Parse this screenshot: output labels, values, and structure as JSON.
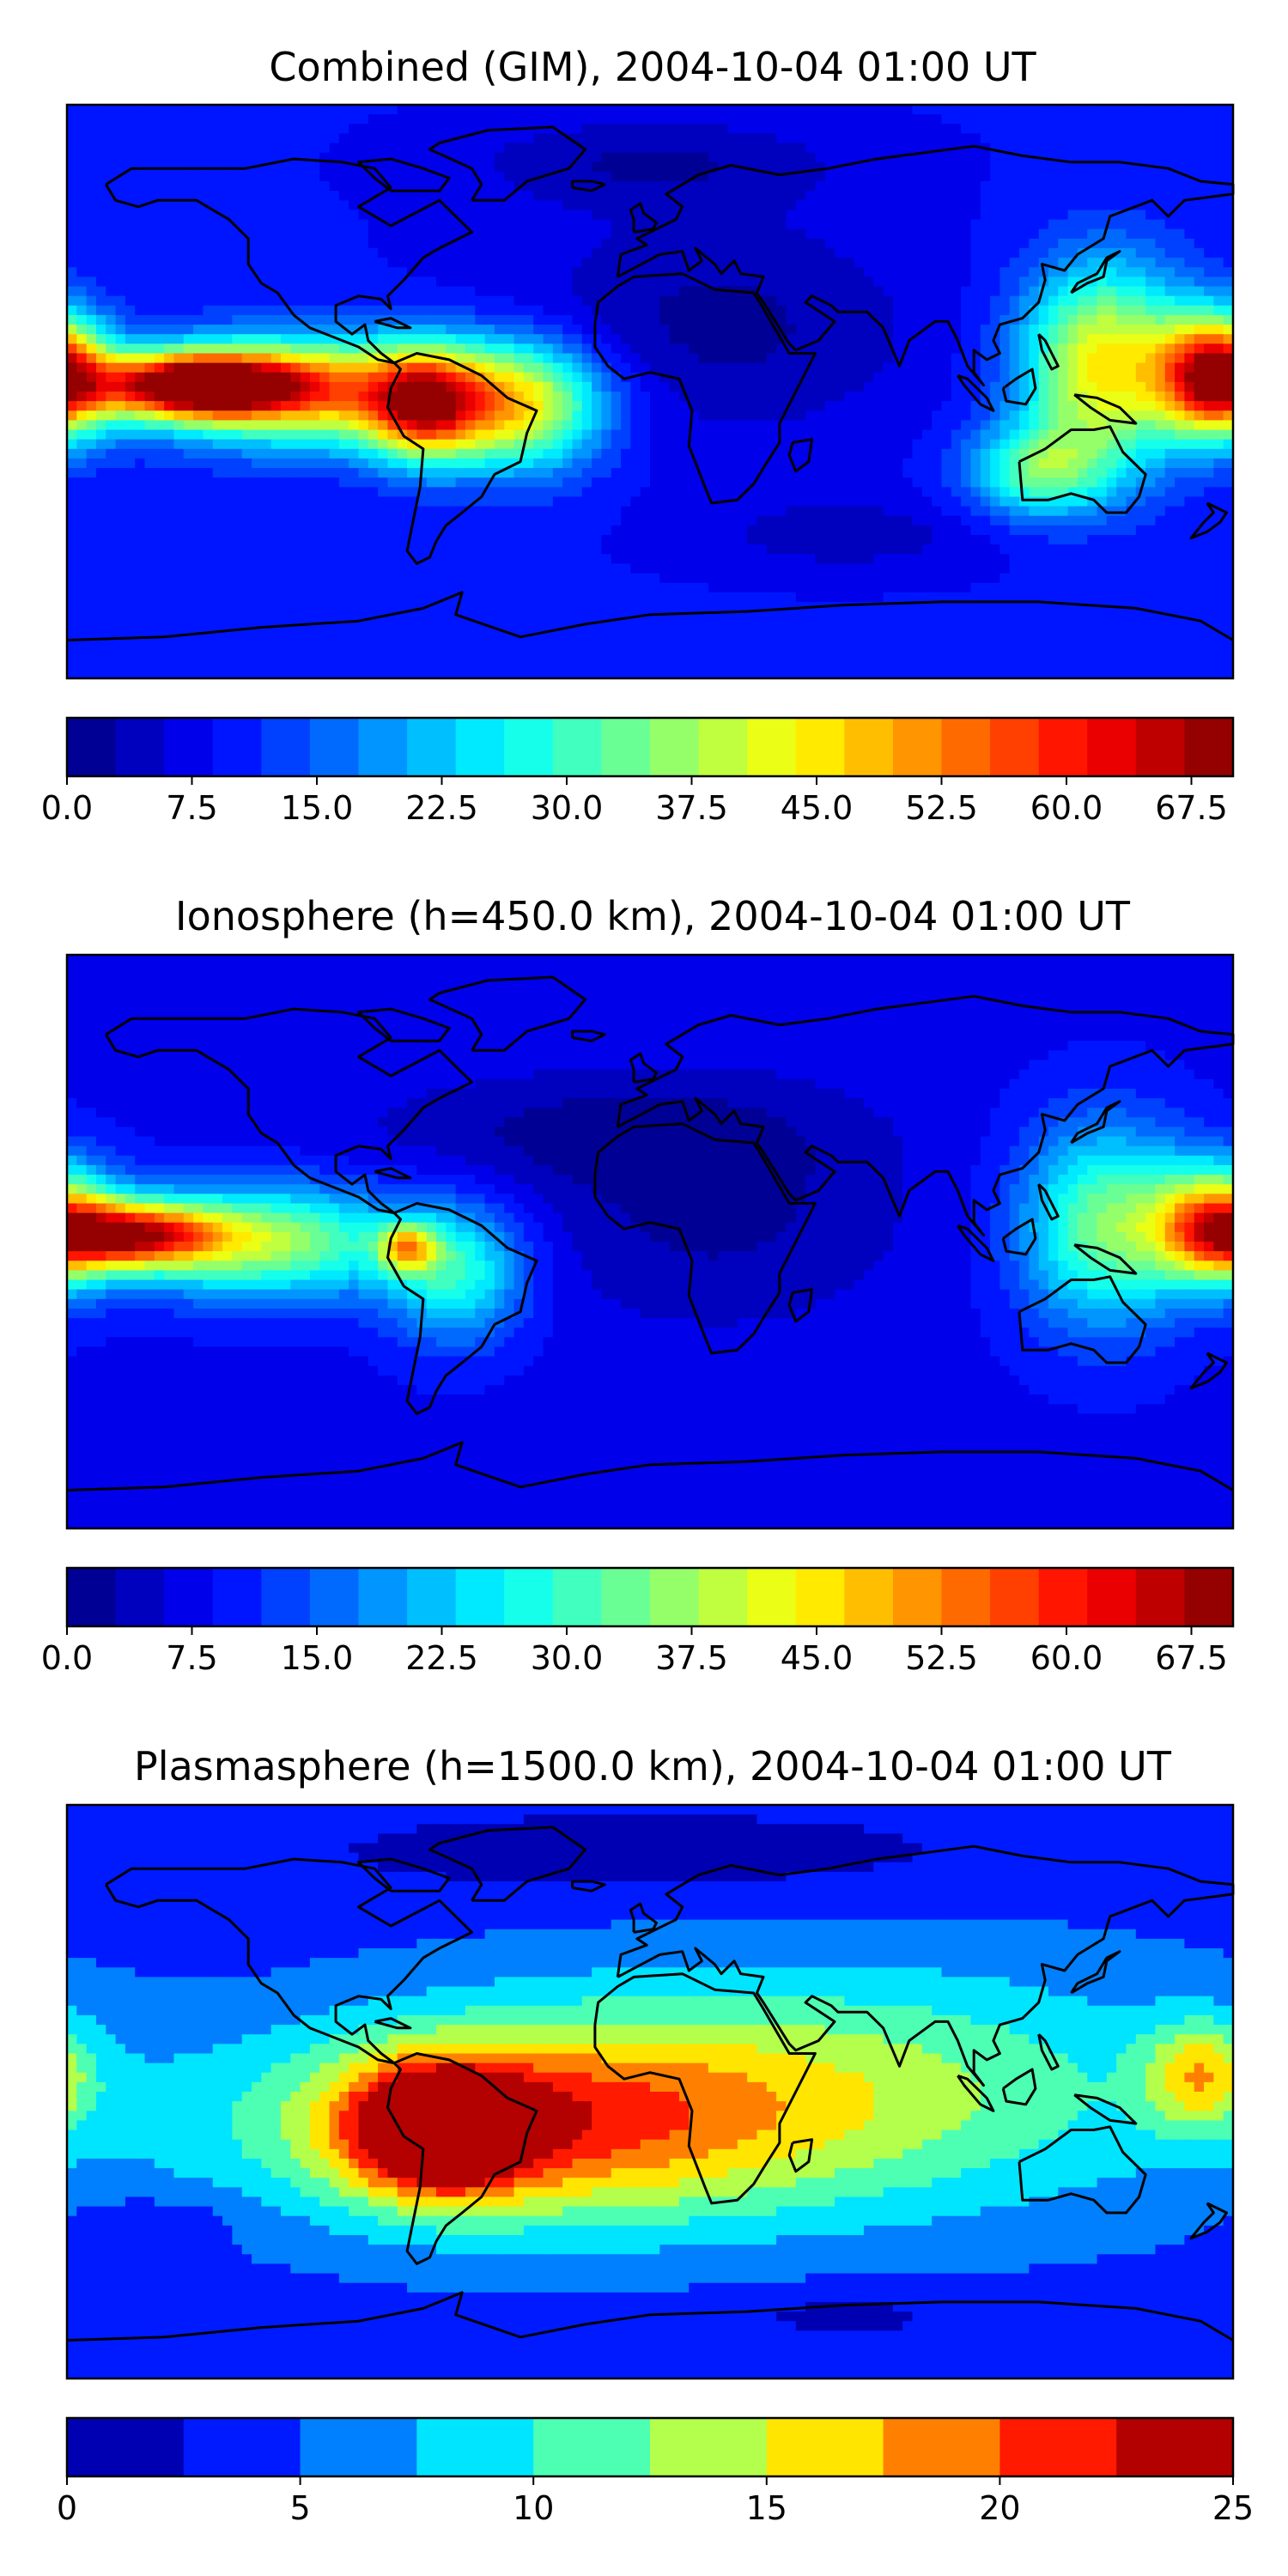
{
  "colors": {
    "jet_steps": [
      "#00008f",
      "#0000c0",
      "#0000ee",
      "#0020ff",
      "#0048ff",
      "#0070ff",
      "#0098ff",
      "#00c0ff",
      "#10e8f0",
      "#38ffc8",
      "#5cffa2",
      "#80ff80",
      "#a4ff5c",
      "#c8ff38",
      "#ecff14",
      "#ffe800",
      "#ffc000",
      "#ff9800",
      "#ff7000",
      "#ff4800",
      "#ff2000",
      "#ee0000",
      "#c00000",
      "#8f0000"
    ],
    "plasma_steps": [
      "#0000b0",
      "#0018ff",
      "#0090ff",
      "#00e0f0",
      "#50ffa8",
      "#a8ff50",
      "#f8f000",
      "#ffa000",
      "#ff4000",
      "#b00000"
    ],
    "coast": "#000000"
  },
  "chart_data": [
    {
      "type": "heatmap",
      "title": "Combined (GIM), 2004-10-04 01:00 UT",
      "colorbar": {
        "ticks": [
          "0.0",
          "7.5",
          "15.0",
          "22.5",
          "30.0",
          "37.5",
          "45.0",
          "52.5",
          "60.0",
          "67.5"
        ],
        "range": [
          0,
          70
        ],
        "levels": 24
      },
      "background_level": 9,
      "blobs": [
        {
          "lon": -140,
          "lat": 2,
          "peak": 60,
          "sx": 22,
          "sy": 7
        },
        {
          "lon": -100,
          "lat": 0,
          "peak": 38,
          "sx": 38,
          "sy": 12
        },
        {
          "lon": -70,
          "lat": -5,
          "peak": 34,
          "sx": 12,
          "sy": 12
        },
        {
          "lon": -40,
          "lat": -5,
          "peak": 30,
          "sx": 18,
          "sy": 14
        },
        {
          "lon": 175,
          "lat": 5,
          "peak": 55,
          "sx": 12,
          "sy": 13
        },
        {
          "lon": 140,
          "lat": 8,
          "peak": 36,
          "sx": 18,
          "sy": 22
        },
        {
          "lon": 120,
          "lat": -25,
          "peak": 22,
          "sx": 15,
          "sy": 10
        }
      ],
      "lows": [
        {
          "lon": 20,
          "lat": 20,
          "depth": 7,
          "sx": 45,
          "sy": 25
        },
        {
          "lon": 0,
          "lat": 72,
          "depth": 6,
          "sx": 40,
          "sy": 10
        },
        {
          "lon": 60,
          "lat": -45,
          "depth": 5,
          "sx": 30,
          "sy": 8
        }
      ]
    },
    {
      "type": "heatmap",
      "title": "Ionosphere  (h=450.0 km), 2004-10-04 01:00 UT",
      "colorbar": {
        "ticks": [
          "0.0",
          "7.5",
          "15.0",
          "22.5",
          "30.0",
          "37.5",
          "45.0",
          "52.5",
          "60.0",
          "67.5"
        ],
        "range": [
          0,
          70
        ],
        "levels": 24
      },
      "background_level": 8,
      "blobs": [
        {
          "lon": -160,
          "lat": 2,
          "peak": 45,
          "sx": 18,
          "sy": 7
        },
        {
          "lon": -120,
          "lat": 0,
          "peak": 30,
          "sx": 30,
          "sy": 12
        },
        {
          "lon": -75,
          "lat": -2,
          "peak": 28,
          "sx": 6,
          "sy": 5
        },
        {
          "lon": -60,
          "lat": -10,
          "peak": 20,
          "sx": 15,
          "sy": 15
        },
        {
          "lon": 175,
          "lat": 5,
          "peak": 42,
          "sx": 14,
          "sy": 13
        },
        {
          "lon": 140,
          "lat": 5,
          "peak": 26,
          "sx": 18,
          "sy": 22
        }
      ],
      "lows": [
        {
          "lon": 20,
          "lat": 10,
          "depth": 6,
          "sx": 40,
          "sy": 25
        },
        {
          "lon": -20,
          "lat": 35,
          "depth": 5,
          "sx": 50,
          "sy": 12
        }
      ]
    },
    {
      "type": "heatmap",
      "title": "Plasmasphere (h=1500.0 km), 2004-10-04 01:00 UT",
      "colorbar": {
        "ticks": [
          "0",
          "5",
          "10",
          "15",
          "20",
          "25"
        ],
        "range": [
          0,
          25
        ],
        "levels": 10
      },
      "background_level": 4,
      "blobs": [
        {
          "lon": -65,
          "lat": -12,
          "peak": 20,
          "sx": 18,
          "sy": 13
        },
        {
          "lon": -45,
          "lat": -10,
          "peak": 14,
          "sx": 60,
          "sy": 22
        },
        {
          "lon": 60,
          "lat": 0,
          "peak": 9,
          "sx": 80,
          "sy": 28
        },
        {
          "lon": 170,
          "lat": 5,
          "peak": 10,
          "sx": 12,
          "sy": 12
        }
      ],
      "lows": [
        {
          "lon": 0,
          "lat": 75,
          "depth": 3,
          "sx": 80,
          "sy": 10
        },
        {
          "lon": 60,
          "lat": -70,
          "depth": 2.5,
          "sx": 30,
          "sy": 6
        },
        {
          "lon": -150,
          "lat": -40,
          "depth": 2,
          "sx": 20,
          "sy": 6
        }
      ]
    }
  ]
}
